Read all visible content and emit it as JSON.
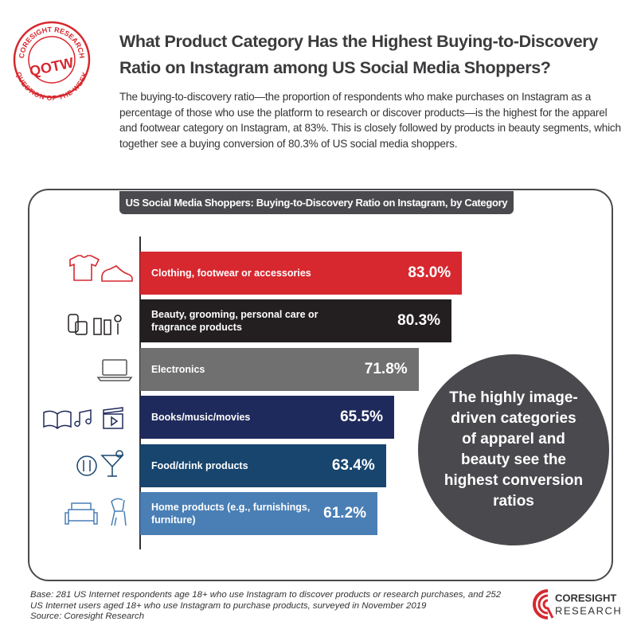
{
  "chart_data": {
    "type": "bar",
    "title": "What Product Category Has the Highest Buying-to-Discovery Ratio on Instagram among US Social Media Shoppers?",
    "subtitle": "The buying-to-discovery ratio—the proportion of respondents who make purchases on Instagram as a percentage of those who use the platform to research or discover products—is the highest for the apparel and footwear category on Instagram, at 83%. This is closely followed by products in beauty segments, which together see a buying conversion of 80.3% of US social media shoppers.",
    "chart_title": "US Social Media Shoppers: Buying-to-Discovery Ratio on Instagram, by Category",
    "categories": [
      "Clothing, footwear or accessories",
      "Beauty, grooming, personal care or fragrance products",
      "Electronics",
      "Books/music/movies",
      "Food/drink products",
      "Home products (e.g., furnishings, furniture)"
    ],
    "values": [
      83.0,
      80.3,
      71.8,
      65.5,
      63.4,
      61.2
    ],
    "value_labels": [
      "83.0%",
      "80.3%",
      "71.8%",
      "65.5%",
      "63.4%",
      "61.2%"
    ],
    "colors": [
      "#d7282f",
      "#231f20",
      "#707070",
      "#1f2a5c",
      "#17456e",
      "#4a7fb5"
    ],
    "annotation": "The highly image-driven categories of apparel and beauty see the highest conversion ratios",
    "base_note": "Base: 281 US Internet respondents age 18+ who use Instagram to discover products or research purchases, and 252 US Internet users aged 18+ who use Instagram to purchase products, surveyed in November 2019",
    "source": "Source: Coresight Research"
  },
  "branding": {
    "stamp_top": "CORESIGHT RESEARCH",
    "stamp_center": "QOTW",
    "stamp_bottom": "QUESTION OF THE WEEK",
    "logo_top": "CORESIGHT",
    "logo_bottom": "RESEARCH"
  }
}
